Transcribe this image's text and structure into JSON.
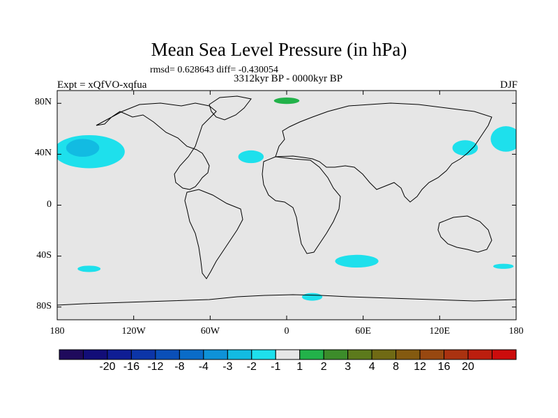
{
  "title": "Mean Sea Level Pressure (in hPa)",
  "stats": "rmsd= 0.628643 diff= -0.430054",
  "subtitle": "3312kyr BP - 0000kyr BP",
  "experiment": "Expt = xQfVO-xqfua",
  "season": "DJF",
  "map_data": {
    "type": "filled-contour-map",
    "variable": "Mean Sea Level Pressure anomaly",
    "units": "hPa",
    "lon_range": [
      -180,
      180
    ],
    "lat_range": [
      -90,
      90
    ],
    "lat_ticks": [
      {
        "value": 80,
        "label": "80N"
      },
      {
        "value": 40,
        "label": "40N"
      },
      {
        "value": 0,
        "label": "0"
      },
      {
        "value": -40,
        "label": "40S"
      },
      {
        "value": -80,
        "label": "80S"
      }
    ],
    "lon_ticks": [
      {
        "value": -180,
        "label": "180"
      },
      {
        "value": -120,
        "label": "120W"
      },
      {
        "value": -60,
        "label": "60W"
      },
      {
        "value": 0,
        "label": "0"
      },
      {
        "value": 60,
        "label": "60E"
      },
      {
        "value": 120,
        "label": "120E"
      },
      {
        "value": 180,
        "label": "180"
      }
    ],
    "anomaly_regions": [
      {
        "name": "north-pacific-low",
        "lon": -155,
        "lat": 42,
        "rlon": 28,
        "rlat": 13,
        "level": "-3 to -2"
      },
      {
        "name": "north-pacific-core",
        "lon": -160,
        "lat": 45,
        "rlon": 13,
        "rlat": 7,
        "level": "-4 to -3"
      },
      {
        "name": "north-atlantic",
        "lon": -28,
        "lat": 38,
        "rlon": 10,
        "rlat": 5,
        "level": "-2 to -1"
      },
      {
        "name": "southern-indian",
        "lon": 55,
        "lat": -44,
        "rlon": 17,
        "rlat": 5,
        "level": "-2 to -1"
      },
      {
        "name": "south-pacific",
        "lon": -155,
        "lat": -50,
        "rlon": 9,
        "rlat": 2.5,
        "level": "-2 to -1"
      },
      {
        "name": "east-asia",
        "lon": 140,
        "lat": 45,
        "rlon": 10,
        "rlat": 6,
        "level": "-2 to -1"
      },
      {
        "name": "ne-pacific-edge",
        "lon": 172,
        "lat": 52,
        "rlon": 12,
        "rlat": 10,
        "level": "-2 to -1"
      },
      {
        "name": "antarctic-coast",
        "lon": 20,
        "lat": -72,
        "rlon": 8,
        "rlat": 3,
        "level": "-2 to -1"
      },
      {
        "name": "south-pacific-east",
        "lon": 170,
        "lat": -48,
        "rlon": 8,
        "rlat": 2,
        "level": "-2 to -1"
      },
      {
        "name": "arctic-siberia",
        "lon": 0,
        "lat": 82,
        "rlon": 10,
        "rlat": 2.5,
        "level": "1 to 2"
      }
    ]
  },
  "colorbar": {
    "labels": [
      "-20",
      "-16",
      "-12",
      "-8",
      "-4",
      "-3",
      "-2",
      "-1",
      "1",
      "2",
      "3",
      "4",
      "8",
      "12",
      "16",
      "20"
    ],
    "colors": [
      "#1f0a5c",
      "#120d78",
      "#0f1d94",
      "#0c35a8",
      "#0a4fb8",
      "#0a6cc8",
      "#0e92d8",
      "#12bbe2",
      "#1ee0ec",
      "#e6e6e6",
      "#22b24a",
      "#3c8c2a",
      "#5c7a1c",
      "#706a14",
      "#845a10",
      "#984810",
      "#aa3210",
      "#bc1e0e",
      "#cc0c0c"
    ]
  }
}
